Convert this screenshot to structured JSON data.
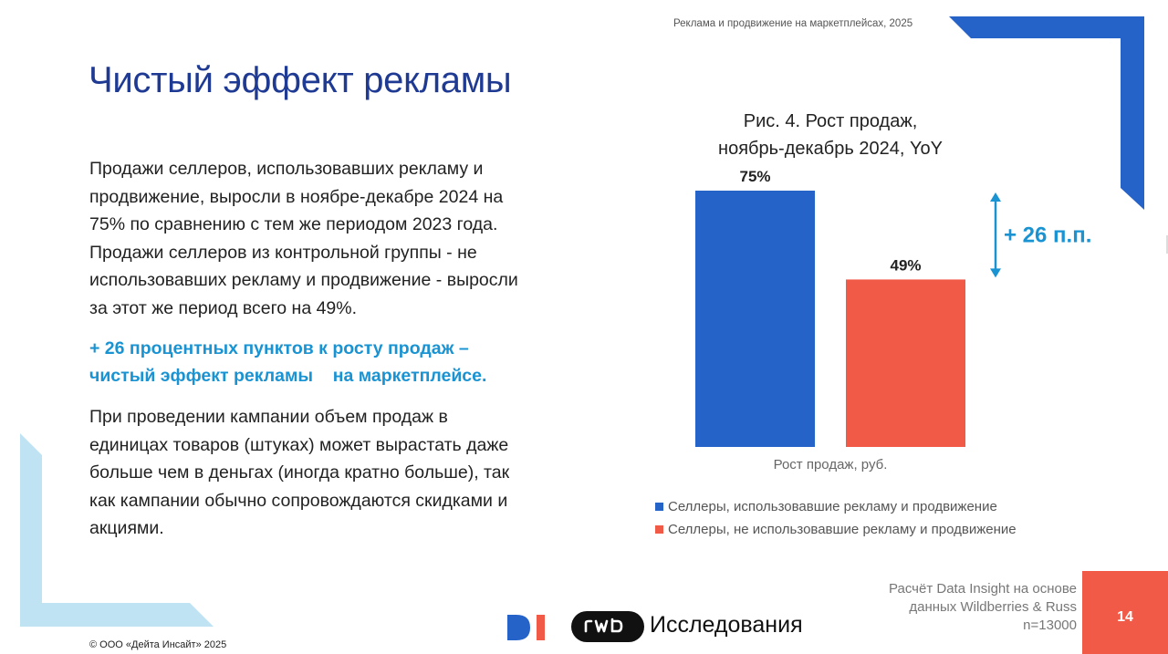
{
  "header": {
    "caption": "Реклама и продвижение на маркетплейсах, 2025"
  },
  "title": "Чистый эффект рекламы",
  "paragraphs": {
    "p1": [
      "Продажи селлеров, использовавших рекламу и",
      "продвижение, выросли в ноябре-декабре 2024 на",
      "75% по сравнению с тем же периодом 2023 года.",
      "Продажи селлеров из контрольной группы - не",
      "использовавших рекламу и продвижение - выросли",
      "за этот же период всего на 49%."
    ],
    "highlight": [
      "+ 26 процентных пунктов к росту продаж –",
      "чистый эффект рекламы    на маркетплейсе."
    ],
    "p2": [
      "При проведении кампании объем продаж в",
      "единицах товаров (штуках) может вырастать даже",
      "больше чем в деньгах (иногда кратно больше), так",
      "как кампании обычно сопровождаются скидками и",
      "акциями."
    ]
  },
  "chart_data": {
    "type": "bar",
    "title": [
      "Рис. 4. Рост продаж,",
      "ноябрь-декабрь 2024, YoY"
    ],
    "xlabel": "Рост продаж, руб.",
    "unit": "%",
    "ylim": [
      0,
      80
    ],
    "series": [
      {
        "name": "Селлеры, использовавшие рекламу и продвижение",
        "value": 75,
        "label": "75%",
        "color": "#2563c9"
      },
      {
        "name": "Селлеры, не использовавшие рекламу и продвижение",
        "value": 49,
        "label": "49%",
        "color": "#f25a48"
      }
    ],
    "annotation": {
      "text": "+ 26 п.п.",
      "color": "#1a93d3"
    },
    "legend_position": "bottom-left"
  },
  "footer": {
    "source": [
      "Расчёт Data Insight на основе",
      "данных Wildberries & Russ",
      "n=13000"
    ],
    "page_number": "14",
    "copyright": "© ООО «Дейта Инсайт» 2025",
    "logo_rwb_text": "Исследования"
  },
  "colors": {
    "title_blue": "#1f3a93",
    "accent_blue": "#2563c9",
    "accent_red": "#f25a48",
    "light_blue": "#bfe3f2",
    "highlight_blue": "#1a93d3"
  }
}
